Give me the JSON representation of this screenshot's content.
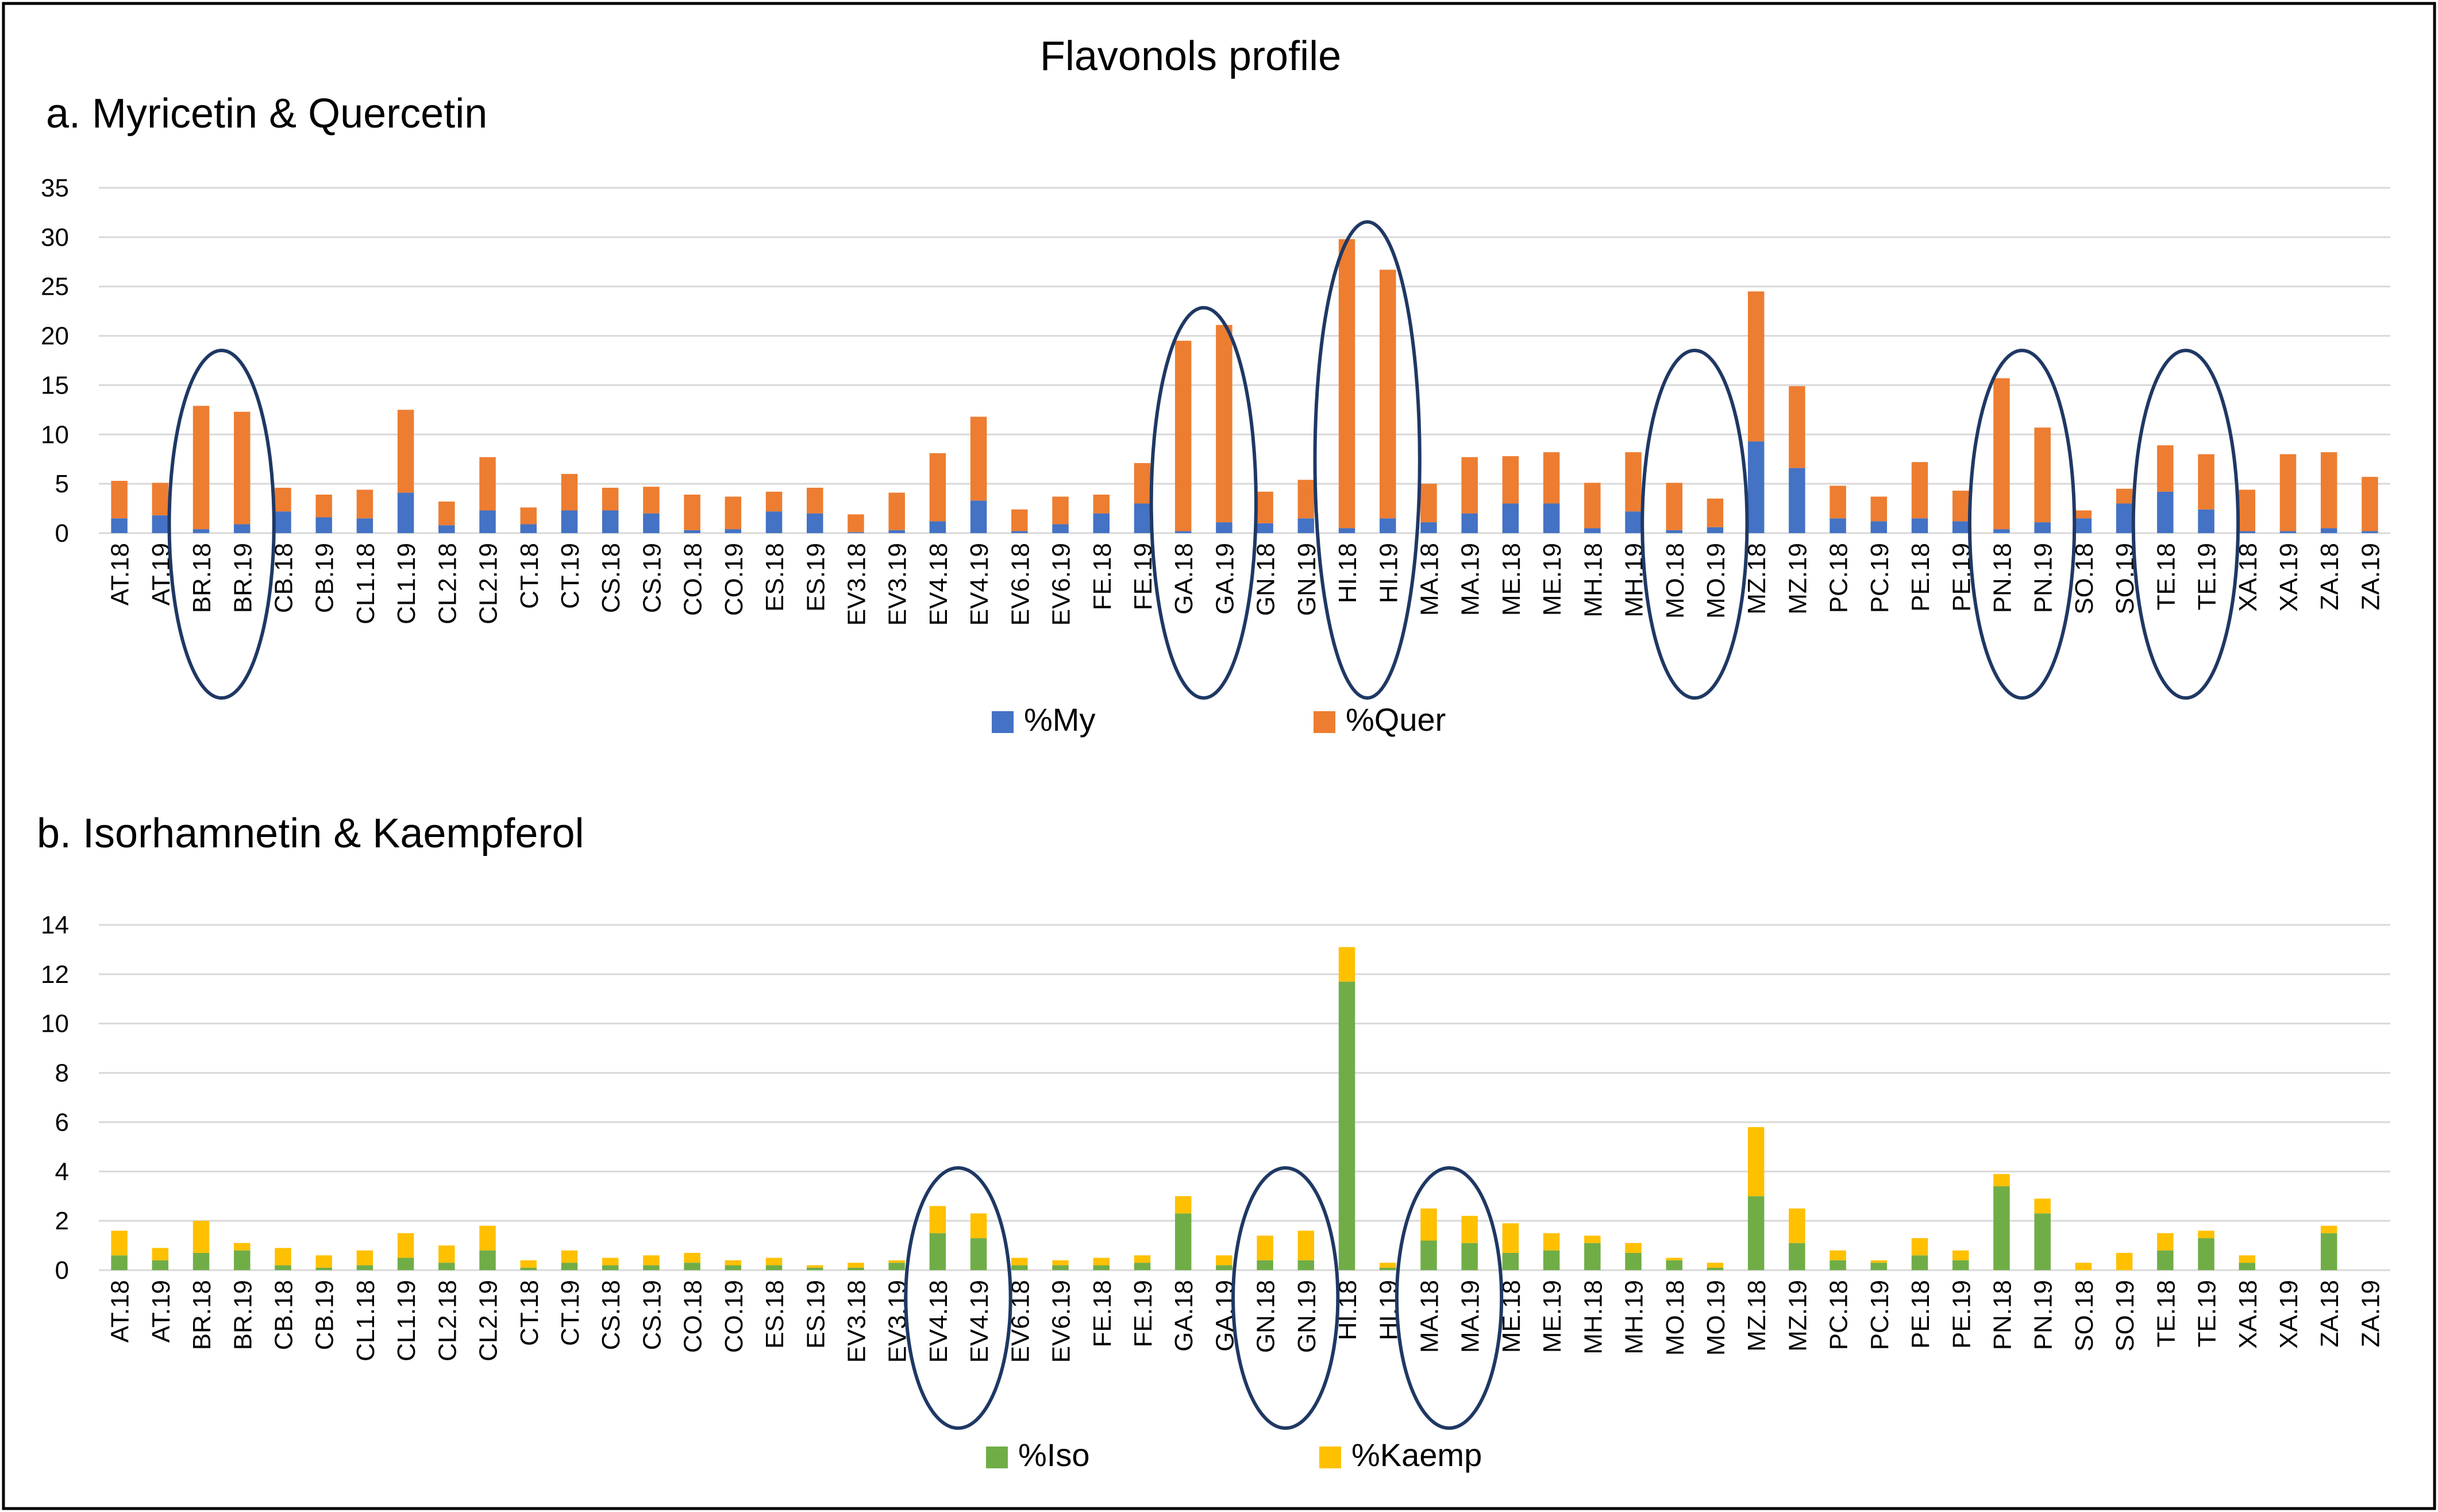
{
  "title": "Flavonols profile",
  "colors": {
    "my": "#4472C4",
    "quer": "#ED7D31",
    "iso": "#70AD47",
    "kaemp": "#FFC000",
    "grid": "#D9D9D9",
    "ellipse": "#1F3864",
    "frame": "#000000"
  },
  "chart_data": [
    {
      "type": "bar",
      "stacked": true,
      "title": "a. Myricetin & Quercetin",
      "xlabel": "",
      "ylabel": "",
      "ylim": [
        0,
        35
      ],
      "yticks": [
        0,
        5,
        10,
        15,
        20,
        25,
        30,
        35
      ],
      "grid": true,
      "legend_position": "bottom",
      "categories": [
        "AT.18",
        "AT.19",
        "BR.18",
        "BR.19",
        "CB.18",
        "CB.19",
        "CL1.18",
        "CL1.19",
        "CL2.18",
        "CL2.19",
        "CT.18",
        "CT.19",
        "CS.18",
        "CS.19",
        "CO.18",
        "CO.19",
        "ES.18",
        "ES.19",
        "EV3.18",
        "EV3.19",
        "EV4.18",
        "EV4.19",
        "EV6.18",
        "EV6.19",
        "FE.18",
        "FE.19",
        "GA.18",
        "GA.19",
        "GN.18",
        "GN.19",
        "HI.18",
        "HI.19",
        "MA.18",
        "MA.19",
        "ME.18",
        "ME.19",
        "MH.18",
        "MH.19",
        "MO.18",
        "MO.19",
        "MZ.18",
        "MZ.19",
        "PC.18",
        "PC.19",
        "PE.18",
        "PE.19",
        "PN.18",
        "PN.19",
        "SO.18",
        "SO.19",
        "TE.18",
        "TE.19",
        "XA.18",
        "XA.19",
        "ZA.18",
        "ZA.19"
      ],
      "series": [
        {
          "name": "%My",
          "values": [
            1.5,
            1.8,
            0.4,
            0.9,
            2.2,
            1.6,
            1.5,
            4.1,
            0.8,
            2.3,
            0.9,
            2.3,
            2.3,
            2.0,
            0.3,
            0.4,
            2.2,
            2.0,
            0.1,
            0.3,
            1.2,
            3.3,
            0.2,
            0.9,
            2.0,
            3.0,
            0.2,
            1.1,
            1.0,
            1.5,
            0.5,
            1.5,
            1.1,
            2.0,
            3.0,
            3.0,
            0.5,
            2.2,
            0.3,
            0.6,
            9.3,
            6.6,
            1.5,
            1.2,
            1.5,
            1.2,
            0.4,
            1.1,
            1.5,
            3.0,
            4.2,
            2.4,
            0.2,
            0.2,
            0.5,
            0.2
          ]
        },
        {
          "name": "%Quer",
          "values": [
            3.8,
            3.3,
            12.5,
            11.4,
            2.4,
            2.3,
            2.9,
            8.4,
            2.4,
            5.4,
            1.7,
            3.7,
            2.3,
            2.7,
            3.6,
            3.3,
            2.0,
            2.6,
            1.8,
            3.8,
            6.9,
            8.5,
            2.2,
            2.8,
            1.9,
            4.1,
            19.3,
            20.0,
            3.2,
            3.9,
            29.3,
            25.2,
            3.9,
            5.7,
            4.8,
            5.2,
            4.6,
            6.0,
            4.8,
            2.9,
            15.2,
            8.3,
            3.3,
            2.5,
            5.7,
            3.1,
            15.3,
            9.6,
            0.8,
            1.5,
            4.7,
            5.6,
            4.2,
            7.8,
            7.7,
            5.5
          ]
        }
      ],
      "highlight_groups": [
        [
          "BR.18",
          "BR.19"
        ],
        [
          "GA.18",
          "GA.19"
        ],
        [
          "HI.18",
          "HI.19"
        ],
        [
          "MO.18",
          "MO.19"
        ],
        [
          "PN.18",
          "PN.19"
        ],
        [
          "TE.18",
          "TE.19"
        ]
      ]
    },
    {
      "type": "bar",
      "stacked": true,
      "title": "b. Isorhamnetin & Kaempferol",
      "xlabel": "",
      "ylabel": "",
      "ylim": [
        0,
        14
      ],
      "yticks": [
        0,
        2,
        4,
        6,
        8,
        10,
        12,
        14
      ],
      "grid": true,
      "legend_position": "bottom",
      "categories": [
        "AT.18",
        "AT.19",
        "BR.18",
        "BR.19",
        "CB.18",
        "CB.19",
        "CL1.18",
        "CL1.19",
        "CL2.18",
        "CL2.19",
        "CT.18",
        "CT.19",
        "CS.18",
        "CS.19",
        "CO.18",
        "CO.19",
        "ES.18",
        "ES.19",
        "EV3.18",
        "EV3.19",
        "EV4.18",
        "EV4.19",
        "EV6.18",
        "EV6.19",
        "FE.18",
        "FE.19",
        "GA.18",
        "GA.19",
        "GN.18",
        "GN.19",
        "HI.18",
        "HI.19",
        "MA.18",
        "MA.19",
        "ME.18",
        "ME.19",
        "MH.18",
        "MH.19",
        "MO.18",
        "MO.19",
        "MZ.18",
        "MZ.19",
        "PC.18",
        "PC.19",
        "PE.18",
        "PE.19",
        "PN.18",
        "PN.19",
        "SO.18",
        "SO.19",
        "TE.18",
        "TE.19",
        "XA.18",
        "XA.19",
        "ZA.18",
        "ZA.19"
      ],
      "series": [
        {
          "name": "%Iso",
          "values": [
            0.6,
            0.4,
            0.7,
            0.8,
            0.2,
            0.1,
            0.2,
            0.5,
            0.3,
            0.8,
            0.1,
            0.3,
            0.2,
            0.2,
            0.3,
            0.2,
            0.2,
            0.1,
            0.1,
            0.3,
            1.5,
            1.3,
            0.2,
            0.2,
            0.2,
            0.3,
            2.3,
            0.2,
            0.4,
            0.4,
            11.7,
            0.1,
            1.2,
            1.1,
            0.7,
            0.8,
            1.1,
            0.7,
            0.4,
            0.1,
            3.0,
            1.1,
            0.4,
            0.3,
            0.6,
            0.4,
            3.4,
            2.3,
            0.0,
            0.0,
            0.8,
            1.3,
            0.3,
            0.0,
            1.5,
            0.0
          ]
        },
        {
          "name": "%Kaemp",
          "values": [
            1.0,
            0.5,
            1.3,
            0.3,
            0.7,
            0.5,
            0.6,
            1.0,
            0.7,
            1.0,
            0.3,
            0.5,
            0.3,
            0.4,
            0.4,
            0.2,
            0.3,
            0.1,
            0.2,
            0.1,
            1.1,
            1.0,
            0.3,
            0.2,
            0.3,
            0.3,
            0.7,
            0.4,
            1.0,
            1.2,
            1.4,
            0.2,
            1.3,
            1.1,
            1.2,
            0.7,
            0.3,
            0.4,
            0.1,
            0.2,
            2.8,
            1.4,
            0.4,
            0.1,
            0.7,
            0.4,
            0.5,
            0.6,
            0.3,
            0.7,
            0.7,
            0.3,
            0.3,
            0.0,
            0.3,
            0.0
          ]
        }
      ],
      "highlight_groups": [
        [
          "EV4.18",
          "EV4.19"
        ],
        [
          "GN.18",
          "GN.19"
        ],
        [
          "MA.18",
          "MA.19"
        ]
      ]
    }
  ]
}
